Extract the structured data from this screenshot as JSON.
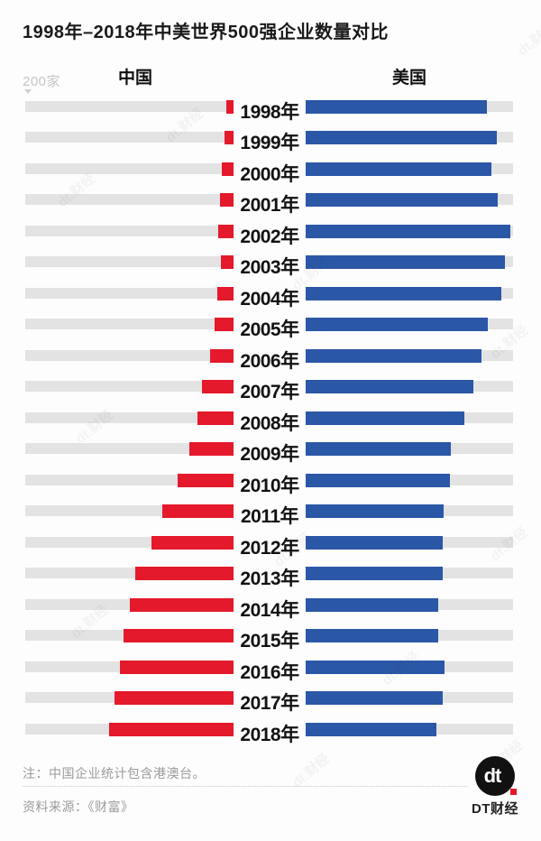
{
  "title": "1998年–2018年中美世界500强企业数量对比",
  "header": {
    "axis_label": "200家",
    "left_series_label": "中国",
    "right_series_label": "美国"
  },
  "chart_data": {
    "type": "bar",
    "orientation": "horizontal-diverging",
    "title": "1998年–2018年中美世界500强企业数量对比",
    "unit": "家",
    "axis_max": 200,
    "axis_tick_label": "200家",
    "categories": [
      "1998年",
      "1999年",
      "2000年",
      "2001年",
      "2002年",
      "2003年",
      "2004年",
      "2005年",
      "2006年",
      "2007年",
      "2008年",
      "2009年",
      "2010年",
      "2011年",
      "2012年",
      "2013年",
      "2014年",
      "2015年",
      "2016年",
      "2017年",
      "2018年"
    ],
    "series": [
      {
        "name": "中国",
        "color": "#e4192b",
        "direction": "left",
        "values": [
          7,
          9,
          11,
          13,
          15,
          12,
          16,
          18,
          23,
          30,
          35,
          43,
          54,
          69,
          79,
          95,
          100,
          106,
          110,
          115,
          120
        ]
      },
      {
        "name": "美国",
        "color": "#2b57a7",
        "direction": "right",
        "values": [
          175,
          184,
          179,
          185,
          197,
          192,
          189,
          176,
          170,
          162,
          153,
          140,
          139,
          133,
          132,
          132,
          128,
          128,
          134,
          132,
          126
        ]
      }
    ],
    "legend_position": "top",
    "grid": false
  },
  "footer": {
    "note": "注：中国企业统计包含港澳台。",
    "source": "资料来源：《财富》",
    "logo_monogram": "dt",
    "logo_label": "DT财经"
  },
  "colors": {
    "china_bar": "#e4192b",
    "usa_bar": "#2b57a7",
    "track": "#e3e3e3",
    "title_text": "#1a1a1a",
    "muted_text": "#9b9b9b",
    "axis_text": "#c6c6c6",
    "background": "#fdfdfd",
    "logo_background": "#111111"
  },
  "watermark_text": "dt.财经"
}
